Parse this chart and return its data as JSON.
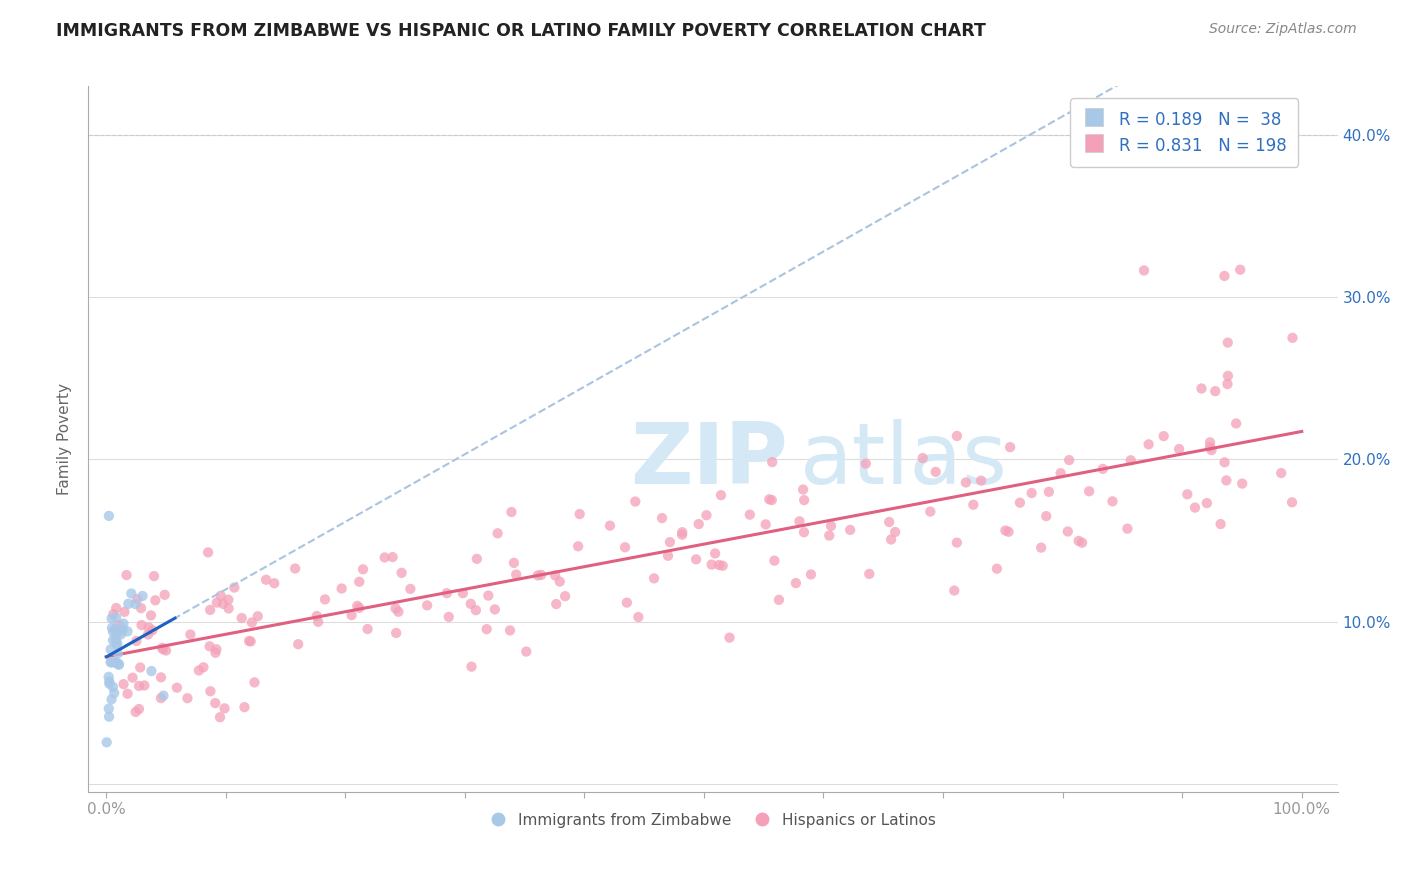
{
  "title": "IMMIGRANTS FROM ZIMBABWE VS HISPANIC OR LATINO FAMILY POVERTY CORRELATION CHART",
  "source": "Source: ZipAtlas.com",
  "ylabel": "Family Poverty",
  "legend_label_1": "Immigrants from Zimbabwe",
  "legend_label_2": "Hispanics or Latinos",
  "R1": 0.189,
  "N1": 38,
  "R2": 0.831,
  "N2": 198,
  "color1": "#a8c8e8",
  "color2": "#f4a0b8",
  "line1_color": "#2060c0",
  "line2_color": "#e06080",
  "trendline_color": "#aac4e0",
  "legend_text_color": "#3070c0",
  "axis_color": "#aaaaaa",
  "grid_color": "#dddddd",
  "title_color": "#222222",
  "source_color": "#888888",
  "watermark_color": "#d5e8f5",
  "tick_label_color": "#999999",
  "right_tick_color": "#3070c0",
  "ylabel_color": "#666666"
}
